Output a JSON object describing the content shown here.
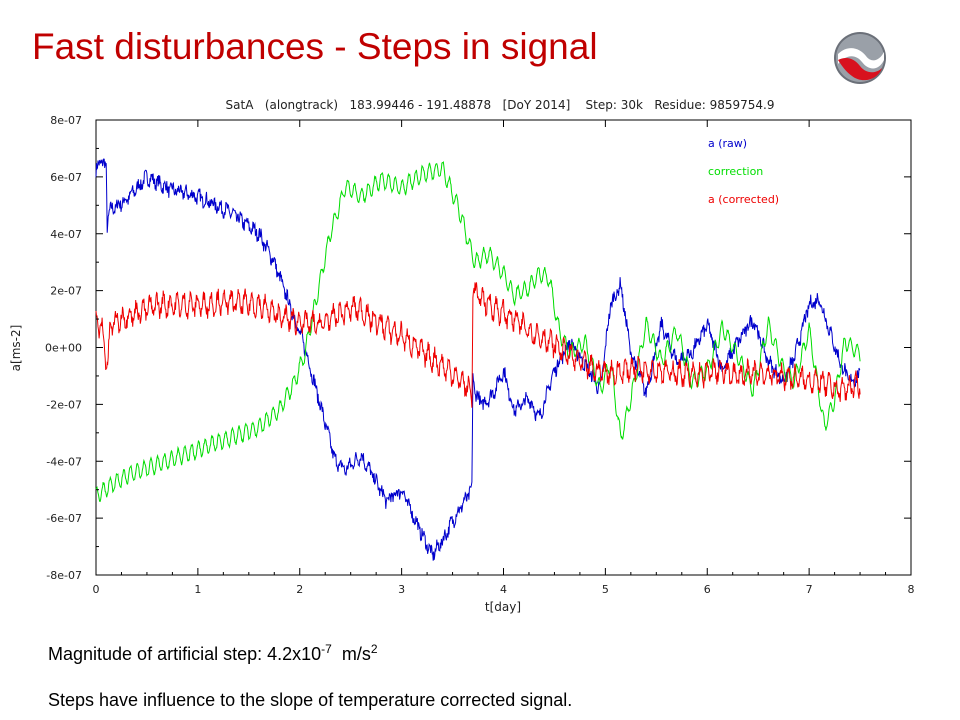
{
  "slide": {
    "title": "Fast disturbances - Steps in signal",
    "caption_1": {
      "prefix": "Magnitude of artificial step: 4.2x10",
      "exponent": "-7",
      "unit_base": "m/s",
      "unit_exp": "2"
    },
    "caption_2": "Steps have influence to the slope of temperature corrected signal."
  },
  "colors": {
    "title": "#c00000",
    "raw": "#0000cc",
    "correction": "#00dd00",
    "corrected": "#ee0000"
  },
  "chart_data": {
    "type": "line",
    "title": "SatA   (alongtrack)   183.99446 - 191.48878   [DoY 2014]    Step: 30k   Residue: 9859754.9",
    "xlabel": "t[day]",
    "ylabel": "a[ms-2]",
    "xlim": [
      0,
      8
    ],
    "ylim": [
      -8e-07,
      8e-07
    ],
    "x_ticks": [
      "0",
      "1",
      "2",
      "3",
      "4",
      "5",
      "6",
      "7",
      "8"
    ],
    "y_ticks": [
      "8e-07",
      "6e-07",
      "4e-07",
      "2e-07",
      "0e+00",
      "-2e-07",
      "-4e-07",
      "-6e-07",
      "-8e-07"
    ],
    "legend_position": "top-right",
    "series": [
      {
        "name": "a (raw)",
        "color": "#0000cc",
        "x": [
          0,
          0.05,
          0.1,
          0.11,
          0.13,
          0.3,
          0.5,
          0.7,
          1.0,
          1.3,
          1.6,
          1.75,
          1.9,
          2.05,
          2.2,
          2.35,
          2.45,
          2.6,
          2.7,
          2.85,
          3.0,
          3.15,
          3.3,
          3.4,
          3.5,
          3.6,
          3.69,
          3.7,
          3.72,
          3.8,
          3.9,
          4.0,
          4.1,
          4.25,
          4.35,
          4.5,
          4.65,
          4.8,
          4.95,
          5.05,
          5.15,
          5.25,
          5.4,
          5.55,
          5.7,
          5.85,
          6.0,
          6.15,
          6.3,
          6.45,
          6.6,
          6.75,
          6.85,
          7.0,
          7.1,
          7.2,
          7.3,
          7.4,
          7.5
        ],
        "y": [
          6.2e-07,
          6.6e-07,
          6.3e-07,
          4.3e-07,
          4.8e-07,
          5.2e-07,
          6e-07,
          5.6e-07,
          5.3e-07,
          4.8e-07,
          4e-07,
          3e-07,
          1.5e-07,
          0,
          -2e-07,
          -4e-07,
          -4.3e-07,
          -3.8e-07,
          -4.4e-07,
          -5.4e-07,
          -5e-07,
          -6.2e-07,
          -7.3e-07,
          -6.8e-07,
          -6.1e-07,
          -5.5e-07,
          -5e-07,
          -9e-08,
          -1.6e-07,
          -2e-07,
          -1.6e-07,
          -8e-08,
          -2.2e-07,
          -1.8e-07,
          -2.5e-07,
          -8e-08,
          2e-08,
          -6e-08,
          -1.5e-07,
          1.5e-07,
          2.2e-07,
          -2e-08,
          -1.6e-07,
          8e-08,
          -5e-08,
          -2e-08,
          8e-08,
          -8e-08,
          2e-08,
          1e-07,
          -5e-08,
          -1.2e-07,
          -4e-08,
          1.5e-07,
          1.7e-07,
          6e-08,
          -5e-08,
          -1.2e-07,
          -1e-07
        ]
      },
      {
        "name": "correction",
        "color": "#00dd00",
        "x": [
          0,
          0.3,
          0.7,
          1.0,
          1.3,
          1.6,
          1.8,
          1.95,
          2.05,
          2.15,
          2.3,
          2.45,
          2.6,
          2.8,
          3.0,
          3.2,
          3.4,
          3.55,
          3.65,
          3.72,
          3.85,
          4.0,
          4.1,
          4.25,
          4.35,
          4.45,
          4.55,
          4.65,
          4.8,
          4.95,
          5.05,
          5.15,
          5.25,
          5.4,
          5.55,
          5.7,
          5.85,
          6.0,
          6.15,
          6.3,
          6.45,
          6.6,
          6.75,
          6.85,
          7.0,
          7.15,
          7.25,
          7.35,
          7.5
        ],
        "y": [
          -5.2e-07,
          -4.5e-07,
          -4e-07,
          -3.6e-07,
          -3.2e-07,
          -2.8e-07,
          -2.2e-07,
          -1.2e-07,
          -2e-08,
          1.5e-07,
          4e-07,
          5.7e-07,
          5.3e-07,
          5.9e-07,
          5.6e-07,
          6.1e-07,
          6.3e-07,
          5e-07,
          3.8e-07,
          3e-07,
          3.3e-07,
          2.6e-07,
          1.8e-07,
          2.1e-07,
          2.6e-07,
          2.4e-07,
          5e-08,
          -2e-08,
          2e-08,
          -1.5e-07,
          -5e-08,
          -3.2e-07,
          -1.8e-07,
          8e-08,
          -5e-08,
          6e-08,
          -1.2e-07,
          -8e-08,
          7e-08,
          -3e-08,
          -1.5e-07,
          8e-08,
          -8e-08,
          -1.2e-07,
          6e-08,
          -2.8e-07,
          -1.8e-07,
          2e-08,
          -2e-08
        ]
      },
      {
        "name": "a (corrected)",
        "color": "#ee0000",
        "x": [
          0,
          0.06,
          0.1,
          0.12,
          0.14,
          0.3,
          0.6,
          1.0,
          1.3,
          1.6,
          1.8,
          2.0,
          2.2,
          2.4,
          2.55,
          2.75,
          3.0,
          3.3,
          3.5,
          3.65,
          3.69,
          3.7,
          3.72,
          3.9,
          4.1,
          4.3,
          4.5,
          4.7,
          4.9,
          5.1,
          5.3,
          5.5,
          5.7,
          5.9,
          6.1,
          6.3,
          6.5,
          6.7,
          6.9,
          7.1,
          7.3,
          7.5
        ],
        "y": [
          1e-07,
          6e-08,
          -4e-08,
          -6e-08,
          8e-08,
          1.1e-07,
          1.5e-07,
          1.5e-07,
          1.6e-07,
          1.5e-07,
          1.1e-07,
          9e-08,
          8e-08,
          1.2e-07,
          1.4e-07,
          9e-08,
          4e-08,
          -4e-08,
          -9e-08,
          -1.4e-07,
          -1.8e-07,
          2.2e-07,
          1.9e-07,
          1.4e-07,
          1e-07,
          5e-08,
          1e-08,
          -4e-08,
          -8e-08,
          -9e-08,
          -7e-08,
          -8e-08,
          -9e-08,
          -1e-07,
          -8e-08,
          -1e-07,
          -9e-08,
          -1e-07,
          -1.1e-07,
          -1.2e-07,
          -1.5e-07,
          -1.3e-07
        ]
      }
    ]
  }
}
